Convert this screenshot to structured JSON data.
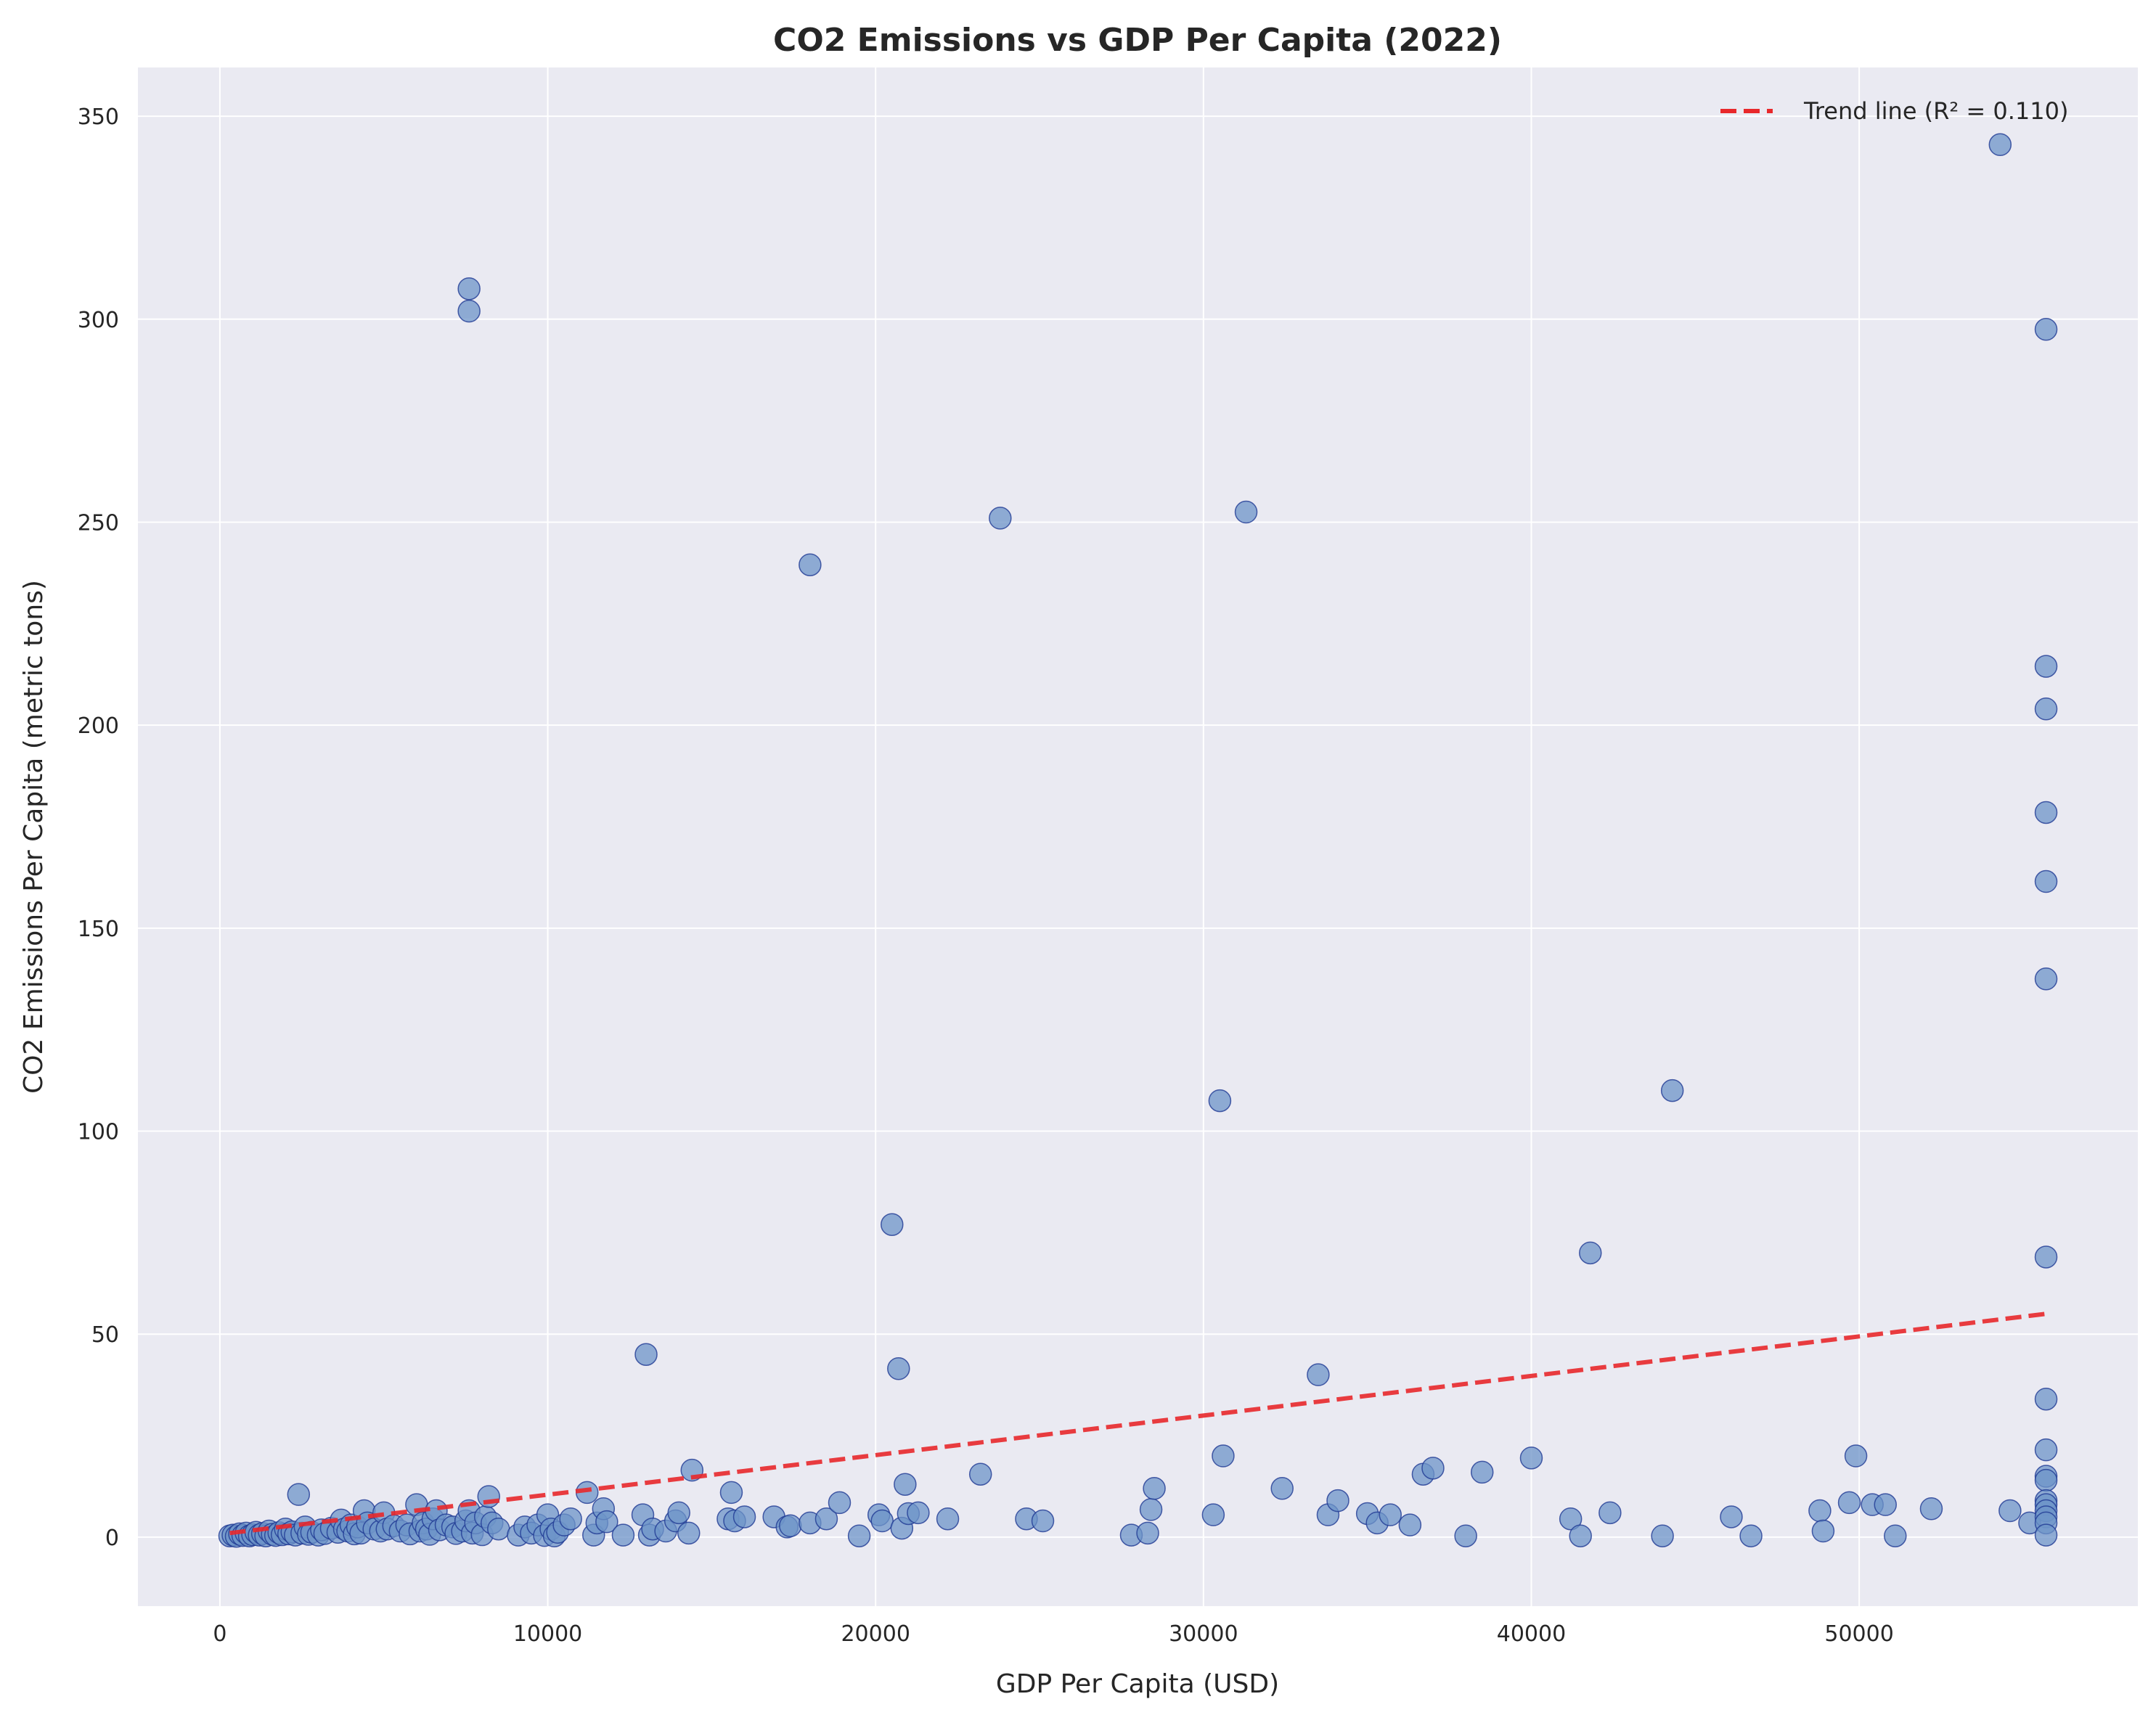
{
  "chart_data": {
    "type": "scatter",
    "title": "CO2 Emissions vs GDP Per Capita (2022)",
    "xlabel": "GDP Per Capita (USD)",
    "ylabel": "CO2 Emissions Per Capita (metric tons)",
    "xlim": [
      -2500,
      58500
    ],
    "ylim": [
      -17,
      362
    ],
    "xticks": [
      0,
      10000,
      20000,
      30000,
      40000,
      50000
    ],
    "yticks": [
      0,
      50,
      100,
      150,
      200,
      250,
      300,
      350
    ],
    "grid": true,
    "legend_position": "top-right",
    "colors": {
      "background": "#eaeaf2",
      "grid": "#ffffff",
      "point_fill": "#6e94c8",
      "point_edge": "#1f3a93",
      "trend": "#e8282b"
    },
    "trend_line": {
      "name": "Trend line (R² = 0.110)",
      "x": [
        300,
        55700
      ],
      "y": [
        1,
        55
      ]
    },
    "series": [
      {
        "points": [
          [
            300,
            0.3
          ],
          [
            400,
            0.5
          ],
          [
            500,
            0.2
          ],
          [
            600,
            0.8
          ],
          [
            700,
            0.4
          ],
          [
            800,
            1.0
          ],
          [
            900,
            0.3
          ],
          [
            1000,
            0.6
          ],
          [
            1100,
            1.2
          ],
          [
            1200,
            0.5
          ],
          [
            1300,
            0.9
          ],
          [
            1400,
            0.3
          ],
          [
            1500,
            1.5
          ],
          [
            1600,
            0.7
          ],
          [
            1700,
            0.4
          ],
          [
            1800,
            1.1
          ],
          [
            1900,
            0.6
          ],
          [
            2000,
            2.0
          ],
          [
            2100,
            0.8
          ],
          [
            2200,
            1.3
          ],
          [
            2300,
            0.5
          ],
          [
            2400,
            10.5
          ],
          [
            2500,
            1.0
          ],
          [
            2600,
            2.5
          ],
          [
            2700,
            0.7
          ],
          [
            2800,
            1.2
          ],
          [
            3000,
            0.5
          ],
          [
            3100,
            1.8
          ],
          [
            3200,
            0.9
          ],
          [
            3400,
            2.2
          ],
          [
            3600,
            1.2
          ],
          [
            3700,
            4.2
          ],
          [
            3800,
            2.0
          ],
          [
            3900,
            1.5
          ],
          [
            4000,
            3.0
          ],
          [
            4100,
            0.8
          ],
          [
            4200,
            2.5
          ],
          [
            4300,
            1.0
          ],
          [
            4400,
            6.5
          ],
          [
            4500,
            3.5
          ],
          [
            4700,
            2.0
          ],
          [
            4900,
            1.5
          ],
          [
            5000,
            6.0
          ],
          [
            5100,
            2.0
          ],
          [
            5300,
            2.8
          ],
          [
            5500,
            1.5
          ],
          [
            5700,
            3.0
          ],
          [
            5800,
            0.8
          ],
          [
            6000,
            8.0
          ],
          [
            6100,
            1.5
          ],
          [
            6200,
            3.5
          ],
          [
            6300,
            2.0
          ],
          [
            6400,
            0.7
          ],
          [
            6500,
            4.5
          ],
          [
            6600,
            6.5
          ],
          [
            6700,
            1.8
          ],
          [
            6900,
            3.0
          ],
          [
            7100,
            2.5
          ],
          [
            7200,
            0.9
          ],
          [
            7400,
            1.5
          ],
          [
            7500,
            4.0
          ],
          [
            7600,
            6.5
          ],
          [
            7600,
            307.5
          ],
          [
            7600,
            302
          ],
          [
            7700,
            1.0
          ],
          [
            7800,
            3.5
          ],
          [
            8000,
            0.6
          ],
          [
            8100,
            5.0
          ],
          [
            8200,
            10.0
          ],
          [
            8300,
            3.5
          ],
          [
            8500,
            2.0
          ],
          [
            9100,
            0.5
          ],
          [
            9300,
            2.5
          ],
          [
            9500,
            1.0
          ],
          [
            9700,
            3.0
          ],
          [
            9900,
            0.4
          ],
          [
            10000,
            5.5
          ],
          [
            10100,
            2.0
          ],
          [
            10200,
            0.3
          ],
          [
            10300,
            1.2
          ],
          [
            10500,
            3.0
          ],
          [
            10700,
            4.5
          ],
          [
            11200,
            11.0
          ],
          [
            11400,
            0.5
          ],
          [
            11500,
            3.5
          ],
          [
            11700,
            7.0
          ],
          [
            11800,
            3.8
          ],
          [
            12300,
            0.5
          ],
          [
            12900,
            5.5
          ],
          [
            13000,
            45
          ],
          [
            13100,
            0.5
          ],
          [
            13200,
            2.0
          ],
          [
            13600,
            1.5
          ],
          [
            13900,
            4.0
          ],
          [
            14000,
            6.0
          ],
          [
            14300,
            1.0
          ],
          [
            14400,
            16.5
          ],
          [
            15500,
            4.5
          ],
          [
            15600,
            11.0
          ],
          [
            15700,
            4.0
          ],
          [
            16000,
            5.0
          ],
          [
            16900,
            5.0
          ],
          [
            17300,
            2.5
          ],
          [
            17400,
            2.8
          ],
          [
            18000,
            3.5
          ],
          [
            18000,
            239.5
          ],
          [
            18500,
            4.5
          ],
          [
            18900,
            8.5
          ],
          [
            19500,
            0.3
          ],
          [
            20100,
            5.5
          ],
          [
            20200,
            4.0
          ],
          [
            20500,
            77
          ],
          [
            20700,
            41.5
          ],
          [
            20800,
            2.2
          ],
          [
            20900,
            13.0
          ],
          [
            21000,
            5.8
          ],
          [
            21300,
            6.0
          ],
          [
            22200,
            4.5
          ],
          [
            23200,
            15.5
          ],
          [
            23800,
            251
          ],
          [
            24600,
            4.5
          ],
          [
            25100,
            4.0
          ],
          [
            27800,
            0.5
          ],
          [
            28300,
            1.0
          ],
          [
            28400,
            6.8
          ],
          [
            28500,
            12.0
          ],
          [
            30300,
            5.5
          ],
          [
            30500,
            107.5
          ],
          [
            30600,
            20.0
          ],
          [
            31300,
            252.5
          ],
          [
            32400,
            12.0
          ],
          [
            33500,
            40.0
          ],
          [
            33800,
            5.5
          ],
          [
            34100,
            9.0
          ],
          [
            35000,
            5.8
          ],
          [
            35300,
            3.5
          ],
          [
            35700,
            5.5
          ],
          [
            36300,
            3.0
          ],
          [
            36700,
            15.5
          ],
          [
            37000,
            17.0
          ],
          [
            38000,
            0.3
          ],
          [
            38500,
            16.0
          ],
          [
            40000,
            19.5
          ],
          [
            41200,
            4.5
          ],
          [
            41500,
            0.3
          ],
          [
            41800,
            70
          ],
          [
            42400,
            6.0
          ],
          [
            44000,
            0.3
          ],
          [
            44300,
            110
          ],
          [
            46100,
            5.0
          ],
          [
            46700,
            0.3
          ],
          [
            48800,
            6.5
          ],
          [
            48900,
            1.5
          ],
          [
            49700,
            8.5
          ],
          [
            49900,
            20.0
          ],
          [
            50400,
            8.0
          ],
          [
            50800,
            8.0
          ],
          [
            51100,
            0.3
          ],
          [
            52200,
            7.0
          ],
          [
            54300,
            343
          ],
          [
            54600,
            6.5
          ],
          [
            55200,
            3.5
          ],
          [
            55700,
            297.5
          ],
          [
            55700,
            214.5
          ],
          [
            55700,
            204
          ],
          [
            55700,
            178.5
          ],
          [
            55700,
            161.5
          ],
          [
            55700,
            137.5
          ],
          [
            55700,
            69
          ],
          [
            55700,
            34
          ],
          [
            55700,
            21.5
          ],
          [
            55700,
            15.0
          ],
          [
            55700,
            14.0
          ],
          [
            55700,
            9.0
          ],
          [
            55700,
            8.0
          ],
          [
            55700,
            6.5
          ],
          [
            55700,
            5.0
          ],
          [
            55700,
            3.5
          ],
          [
            55700,
            0.5
          ]
        ]
      }
    ]
  }
}
